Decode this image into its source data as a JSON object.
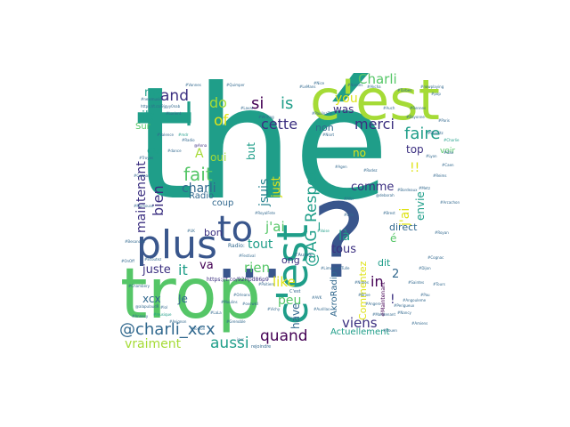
{
  "figure": {
    "type": "word-cloud"
  },
  "colors": {
    "teal": "#1f9e89",
    "green": "#55c667",
    "lime": "#a5db36",
    "yellow": "#dfe318",
    "blue": "#39568c",
    "navy": "#3b2f80",
    "purple": "#440154",
    "slate": "#31688e",
    "cyan": "#26828e"
  },
  "words": [
    {
      "text": "thé",
      "color": "teal"
    },
    {
      "text": "trop",
      "color": "green"
    },
    {
      "text": "?",
      "color": "blue"
    },
    {
      "text": "c'est",
      "color": "lime"
    },
    {
      "text": "...",
      "color": "blue"
    },
    {
      "text": "plus",
      "color": "blue"
    },
    {
      "text": "c'est",
      "color": "teal"
    },
    {
      "text": "to",
      "color": "blue"
    },
    {
      "text": "l",
      "color": "teal"
    },
    {
      "text": "@charli_xcx",
      "color": "slate"
    },
    {
      "text": "fait",
      "color": "green"
    },
    {
      "text": "@AG_Respect",
      "color": "teal"
    },
    {
      "text": "quand",
      "color": "purple"
    },
    {
      "text": "aussi",
      "color": "teal"
    },
    {
      "text": "faire",
      "color": "teal"
    },
    {
      "text": "si",
      "color": "purple"
    },
    {
      "text": "is",
      "color": "teal"
    },
    {
      "text": "merci",
      "color": "navy"
    },
    {
      "text": "cette",
      "color": "navy"
    },
    {
      "text": "and",
      "color": "navy"
    },
    {
      "text": "do",
      "color": "lime"
    },
    {
      "text": "of",
      "color": "yellow"
    },
    {
      "text": "Charli",
      "color": "green"
    },
    {
      "text": "you",
      "color": "yellow"
    },
    {
      "text": "was",
      "color": "navy"
    },
    {
      "text": "A",
      "color": "lime"
    },
    {
      "text": "oui",
      "color": "lime"
    },
    {
      "text": "charli",
      "color": "slate"
    },
    {
      "text": "bien",
      "color": "navy"
    },
    {
      "text": "maintenant",
      "color": "navy"
    },
    {
      "text": "jsuis",
      "color": "cyan"
    },
    {
      "text": "j'ai",
      "color": "green"
    },
    {
      "text": "comme",
      "color": "navy"
    },
    {
      "text": "là",
      "color": "teal"
    },
    {
      "text": "tout",
      "color": "teal"
    },
    {
      "text": "tous",
      "color": "navy"
    },
    {
      "text": "va",
      "color": "purple"
    },
    {
      "text": "it",
      "color": "teal"
    },
    {
      "text": "rien",
      "color": "green"
    },
    {
      "text": "juste",
      "color": "navy"
    },
    {
      "text": "in",
      "color": "purple"
    },
    {
      "text": "like",
      "color": "yellow"
    },
    {
      "text": "peu",
      "color": "green"
    },
    {
      "text": "viens",
      "color": "navy"
    },
    {
      "text": "xcx",
      "color": "slate"
    },
    {
      "text": "Je",
      "color": "slate"
    },
    {
      "text": "vraiment",
      "color": "lime"
    },
    {
      "text": "ils",
      "color": "teal"
    },
    {
      "text": "my",
      "color": "teal"
    },
    {
      "text": "ça",
      "color": "teal"
    },
    {
      "text": "bon",
      "color": "navy"
    },
    {
      "text": "ong",
      "color": "navy"
    },
    {
      "text": "have",
      "color": "slate"
    },
    {
      "text": "!!",
      "color": "yellow"
    },
    {
      "text": "j'ai",
      "color": "yellow"
    },
    {
      "text": "envie",
      "color": "teal"
    },
    {
      "text": "top",
      "color": "navy"
    },
    {
      "text": "direct",
      "color": "slate"
    },
    {
      "text": "dit",
      "color": "teal"
    },
    {
      "text": "non",
      "color": "slate"
    },
    {
      "text": "no",
      "color": "yellow"
    },
    {
      "text": "but",
      "color": "teal"
    },
    {
      "text": "just",
      "color": "yellow"
    },
    {
      "text": "Actuellement",
      "color": "teal"
    },
    {
      "text": "Commentez",
      "color": "yellow"
    },
    {
      "text": "AkroRadio",
      "color": "slate"
    },
    {
      "text": "!",
      "color": "navy"
    },
    {
      "text": "2",
      "color": "slate"
    },
    {
      "text": "é",
      "color": "green"
    },
    {
      "text": "coup",
      "color": "slate"
    },
    {
      "text": "Radio",
      "color": "slate"
    },
    {
      "text": "voir",
      "color": "green"
    },
    {
      "text": "Sur",
      "color": "green"
    },
    {
      "text": "https://t.co/92Hpd86p9",
      "color": "navy"
    },
    {
      "text": "Radio:",
      "color": "slate"
    },
    {
      "text": "#Maintenant",
      "color": "purple"
    },
    {
      "text": "d'Aussie",
      "color": "slate"
    },
    {
      "text": "C'est",
      "color": "slate"
    },
    {
      "text": "rejoindre",
      "color": "slate"
    },
    {
      "text": "https://t.co/9jgyy0nab",
      "color": "slate"
    },
    {
      "text": "@alapulaudR",
      "color": "slate"
    },
    {
      "text": "#musique",
      "color": "teal"
    },
    {
      "text": "#Festival",
      "color": "slate"
    },
    {
      "text": "#RoyalFete",
      "color": "slate"
    },
    {
      "text": "@Anna",
      "color": "navy"
    },
    {
      "text": "#mdr",
      "color": "teal"
    },
    {
      "text": "#Writing",
      "color": "slate"
    },
    {
      "text": "#Charlie",
      "color": "teal"
    },
    {
      "text": "@deborah",
      "color": "slate"
    },
    {
      "text": "#Vaise",
      "color": "teal"
    },
    {
      "text": "#Akcha",
      "color": "slate"
    },
    {
      "text": "#PaulinaTV",
      "color": "slate"
    },
    {
      "text": "#Maintenant",
      "color": "slate"
    },
    {
      "text": "#ovcwkil",
      "color": "slate"
    },
    {
      "text": "#LaLa",
      "color": "slate"
    },
    {
      "text": "#lol",
      "color": "slate"
    },
    {
      "text": "jour",
      "color": "slate"
    },
    {
      "text": "C'est",
      "color": "slate"
    },
    {
      "text": "#AVK",
      "color": "slate"
    },
    {
      "text": "#Radio",
      "color": "slate"
    },
    {
      "text": "#Ecoutez",
      "color": "slate"
    },
    {
      "text": "#OnOff",
      "color": "slate"
    },
    {
      "text": "#UK",
      "color": "slate"
    },
    {
      "text": "#dance",
      "color": "slate"
    },
    {
      "text": "#newmusic",
      "color": "slate"
    },
    {
      "text": "#nowplaying",
      "color": "slate"
    },
    {
      "text": "#pop",
      "color": "slate"
    },
    {
      "text": "#Paris",
      "color": "slate"
    },
    {
      "text": "#Lyon",
      "color": "slate"
    },
    {
      "text": "#Bordeaux",
      "color": "slate"
    },
    {
      "text": "#Lille",
      "color": "slate"
    },
    {
      "text": "#Nice",
      "color": "slate"
    },
    {
      "text": "#Nantes",
      "color": "slate"
    },
    {
      "text": "#Rennes",
      "color": "slate"
    },
    {
      "text": "#Brest",
      "color": "slate"
    },
    {
      "text": "#Metz",
      "color": "slate"
    },
    {
      "text": "#Reims",
      "color": "slate"
    },
    {
      "text": "#Caen",
      "color": "slate"
    },
    {
      "text": "#Tours",
      "color": "slate"
    },
    {
      "text": "#Dijon",
      "color": "slate"
    },
    {
      "text": "#Pau",
      "color": "slate"
    },
    {
      "text": "#Nancy",
      "color": "slate"
    },
    {
      "text": "#Amiens",
      "color": "slate"
    },
    {
      "text": "#Rouen",
      "color": "slate"
    },
    {
      "text": "#Angers",
      "color": "slate"
    },
    {
      "text": "#Nimes",
      "color": "slate"
    },
    {
      "text": "#Limoges",
      "color": "slate"
    },
    {
      "text": "#Poitiers",
      "color": "slate"
    },
    {
      "text": "#Orleans",
      "color": "slate"
    },
    {
      "text": "#Grenoble",
      "color": "slate"
    },
    {
      "text": "#Toulon",
      "color": "slate"
    },
    {
      "text": "#Avignon",
      "color": "slate"
    },
    {
      "text": "#Annecy",
      "color": "slate"
    },
    {
      "text": "#Chambery",
      "color": "slate"
    },
    {
      "text": "#Besancon",
      "color": "slate"
    },
    {
      "text": "#Mulhouse",
      "color": "slate"
    },
    {
      "text": "#Colmar",
      "color": "slate"
    },
    {
      "text": "#Troyes",
      "color": "slate"
    },
    {
      "text": "#Valence",
      "color": "slate"
    },
    {
      "text": "#Lorient",
      "color": "slate"
    },
    {
      "text": "#Vannes",
      "color": "slate"
    },
    {
      "text": "#Quimper",
      "color": "slate"
    },
    {
      "text": "#Laval",
      "color": "slate"
    },
    {
      "text": "#LeMans",
      "color": "slate"
    },
    {
      "text": "#Niort",
      "color": "slate"
    },
    {
      "text": "#Agen",
      "color": "slate"
    },
    {
      "text": "#Albi",
      "color": "slate"
    },
    {
      "text": "#Rodez",
      "color": "slate"
    },
    {
      "text": "#Auch",
      "color": "slate"
    },
    {
      "text": "#Tarbes",
      "color": "slate"
    },
    {
      "text": "#Bayonne",
      "color": "slate"
    },
    {
      "text": "#Biarritz",
      "color": "slate"
    },
    {
      "text": "#Dax",
      "color": "slate"
    },
    {
      "text": "#Arcachon",
      "color": "slate"
    },
    {
      "text": "#Royan",
      "color": "slate"
    },
    {
      "text": "#Cognac",
      "color": "slate"
    },
    {
      "text": "#Saintes",
      "color": "slate"
    },
    {
      "text": "#Angouleme",
      "color": "slate"
    },
    {
      "text": "#Perigueux",
      "color": "slate"
    },
    {
      "text": "#Brive",
      "color": "slate"
    },
    {
      "text": "#Tulle",
      "color": "slate"
    },
    {
      "text": "#Aurillac",
      "color": "slate"
    },
    {
      "text": "#Vichy",
      "color": "slate"
    },
    {
      "text": "#Moulins",
      "color": "slate"
    }
  ]
}
